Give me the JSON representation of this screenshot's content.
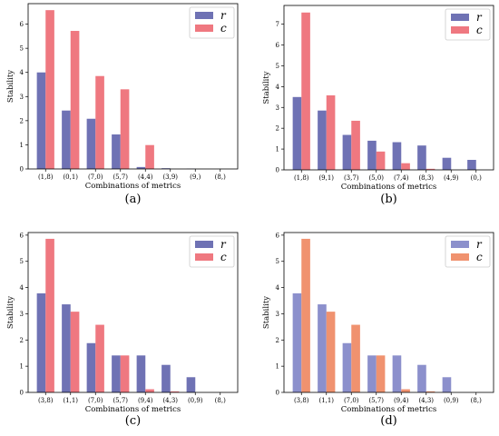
{
  "colors": {
    "mode_a": {
      "r": "#6f72b4",
      "c": "#ef7880"
    },
    "mode_b": {
      "r": "#8c90cc",
      "c": "#f0926f"
    }
  },
  "chart_data": [
    {
      "type": "bar",
      "panel_label": "(a)",
      "color_mode": "mode_a",
      "categories": [
        "(1,8)",
        "(0,1)",
        "(7,0)",
        "(5,7)",
        "(4,4)",
        "(3,9)",
        "(9,)",
        "(8,)"
      ],
      "series": [
        {
          "name": "r",
          "values": [
            4.0,
            2.42,
            2.08,
            1.43,
            0.08,
            0.03,
            0.01,
            0.0
          ]
        },
        {
          "name": "c",
          "values": [
            6.58,
            5.72,
            3.85,
            3.3,
            0.99,
            0.0,
            0.0,
            0.0
          ]
        }
      ],
      "xlabel": "Combinations of metrics",
      "ylabel": "Stability",
      "ylim": [
        0,
        6.85
      ],
      "yticks": [
        0,
        1,
        2,
        3,
        4,
        5,
        6
      ],
      "legend": "top-right",
      "grid": false
    },
    {
      "type": "bar",
      "panel_label": "(b)",
      "color_mode": "mode_a",
      "categories": [
        "(1,8)",
        "(9,1)",
        "(3,7)",
        "(5,0)",
        "(7,4)",
        "(8,3)",
        "(4,9)",
        "(0,)"
      ],
      "series": [
        {
          "name": "r",
          "values": [
            3.5,
            2.85,
            1.68,
            1.4,
            1.33,
            1.17,
            0.58,
            0.48
          ]
        },
        {
          "name": "c",
          "values": [
            7.56,
            3.58,
            2.36,
            0.88,
            0.32,
            0.05,
            0.0,
            0.0
          ]
        }
      ],
      "xlabel": "Combinations of metrics",
      "ylabel": "Stability",
      "ylim": [
        0,
        7.9
      ],
      "yticks": [
        0,
        1,
        2,
        3,
        4,
        5,
        6,
        7
      ],
      "legend": "top-right",
      "grid": false
    },
    {
      "type": "bar",
      "panel_label": "(c)",
      "color_mode": "mode_a",
      "categories": [
        "(3,8)",
        "(1,1)",
        "(7,0)",
        "(5,7)",
        "(9,4)",
        "(4,3)",
        "(0,9)",
        "(8,)"
      ],
      "series": [
        {
          "name": "r",
          "values": [
            3.78,
            3.36,
            1.88,
            1.41,
            1.41,
            1.05,
            0.58,
            0.0
          ]
        },
        {
          "name": "c",
          "values": [
            5.86,
            3.08,
            2.58,
            1.41,
            0.12,
            0.04,
            0.0,
            0.0
          ]
        }
      ],
      "xlabel": "Combinations of metrics",
      "ylabel": "Stability",
      "ylim": [
        0,
        6.1
      ],
      "yticks": [
        0,
        1,
        2,
        3,
        4,
        5,
        6
      ],
      "legend": "top-right",
      "grid": false
    },
    {
      "type": "bar",
      "panel_label": "(d)",
      "color_mode": "mode_b",
      "categories": [
        "(3,8)",
        "(1,1)",
        "(7,0)",
        "(5,7)",
        "(9,4)",
        "(4,3)",
        "(0,9)",
        "(8,)"
      ],
      "series": [
        {
          "name": "r",
          "values": [
            3.78,
            3.36,
            1.88,
            1.41,
            1.41,
            1.05,
            0.58,
            0.0
          ]
        },
        {
          "name": "c",
          "values": [
            5.86,
            3.08,
            2.58,
            1.41,
            0.12,
            0.04,
            0.0,
            0.0
          ]
        }
      ],
      "xlabel": "Combinations of metrics",
      "ylabel": "Stability",
      "ylim": [
        0,
        6.1
      ],
      "yticks": [
        0,
        1,
        2,
        3,
        4,
        5,
        6
      ],
      "legend": "top-right",
      "grid": false
    }
  ]
}
